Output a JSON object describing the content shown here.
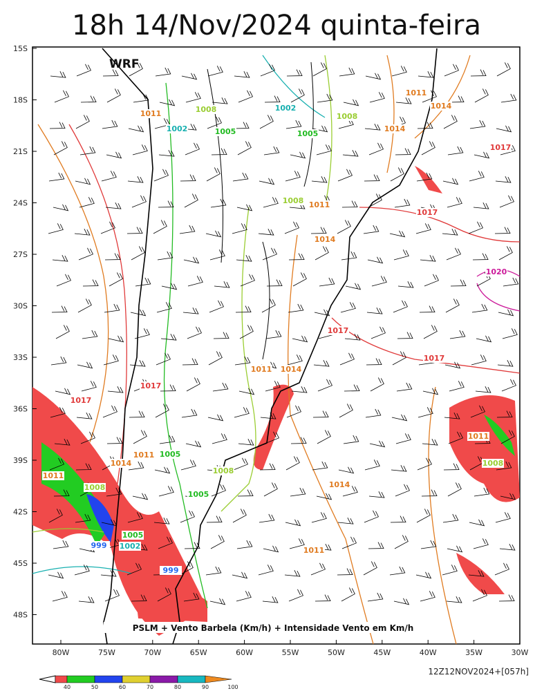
{
  "map": {
    "title": "18h 14/Nov/2024 quinta-feira",
    "model": "WRF",
    "lat_labels": [
      "15S",
      "18S",
      "21S",
      "24S",
      "27S",
      "30S",
      "33S",
      "36S",
      "39S",
      "42S",
      "45S",
      "48S"
    ],
    "lon_labels": [
      "80W",
      "75W",
      "70W",
      "65W",
      "60W",
      "55W",
      "50W",
      "45W",
      "40W",
      "35W",
      "30W"
    ],
    "caption": "PSLM + Vento Barbela (Km/h) + Intensidade Vento em Km/h",
    "run": "12Z12NOV2024+[057h]",
    "colorbar": {
      "labels": [
        "40",
        "50",
        "60",
        "70",
        "80",
        "90",
        "100"
      ],
      "colors": [
        "#f04a4a",
        "#22cc22",
        "#2244ee",
        "#e0d030",
        "#8a1aa8",
        "#18b8c0",
        "#ee8a20"
      ]
    },
    "isobars": [
      {
        "label": "1011",
        "color": "#e07b20"
      },
      {
        "label": "1002",
        "color": "#18b0b0"
      },
      {
        "label": "1008",
        "color": "#9acd32"
      },
      {
        "label": "1005",
        "color": "#22bb22"
      },
      {
        "label": "1002",
        "color": "#18b0b0"
      },
      {
        "label": "1005",
        "color": "#22bb22"
      },
      {
        "label": "1008",
        "color": "#9acd32"
      },
      {
        "label": "1011",
        "color": "#e07b20"
      },
      {
        "label": "1014",
        "color": "#e07b20"
      },
      {
        "label": "1014",
        "color": "#e07b20"
      },
      {
        "label": "1017",
        "color": "#e03a3a"
      },
      {
        "label": "1017",
        "color": "#e03a3a"
      },
      {
        "label": "1008",
        "color": "#9acd32"
      },
      {
        "label": "1011",
        "color": "#e07b20"
      },
      {
        "label": "1014",
        "color": "#e07b20"
      },
      {
        "label": "1020",
        "color": "#cc1a9a"
      },
      {
        "label": "1017",
        "color": "#e03a3a"
      },
      {
        "label": "1017",
        "color": "#e03a3a"
      },
      {
        "label": "1011",
        "color": "#e07b20"
      },
      {
        "label": "1014",
        "color": "#e07b20"
      },
      {
        "label": "1017",
        "color": "#e03a3a"
      },
      {
        "label": "1017",
        "color": "#e03a3a"
      },
      {
        "label": "1014",
        "color": "#e07b20"
      },
      {
        "label": "1011",
        "color": "#e07b20"
      },
      {
        "label": "1005",
        "color": "#22bb22"
      },
      {
        "label": "1008",
        "color": "#9acd32"
      },
      {
        "label": "1014",
        "color": "#e07b20"
      },
      {
        "label": "1011",
        "color": "#e07b20"
      },
      {
        "label": "1008",
        "color": "#9acd32"
      },
      {
        "label": "1005",
        "color": "#22bb22"
      },
      {
        "label": "1005",
        "color": "#22bb22"
      },
      {
        "label": "999",
        "color": "#2266ee"
      },
      {
        "label": "1002",
        "color": "#18b0b0"
      },
      {
        "label": "999",
        "color": "#2266ee"
      },
      {
        "label": "1011",
        "color": "#e07b20"
      },
      {
        "label": "1011",
        "color": "#e07b20"
      },
      {
        "label": "1008",
        "color": "#9acd32"
      }
    ]
  }
}
